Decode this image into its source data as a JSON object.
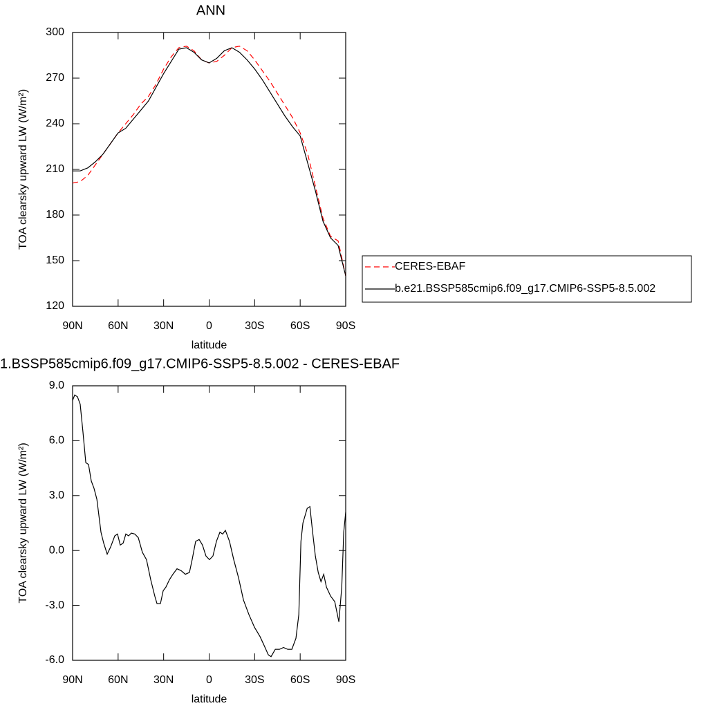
{
  "chart_data": [
    {
      "type": "line",
      "title": "ANN",
      "xlabel": "latitude",
      "ylabel": "TOA clearsky upward LW (W/m²)",
      "x": [
        90,
        85,
        80,
        75,
        70,
        65,
        60,
        55,
        50,
        45,
        40,
        35,
        30,
        25,
        20,
        15,
        10,
        5,
        0,
        -5,
        -10,
        -15,
        -20,
        -25,
        -30,
        -35,
        -40,
        -45,
        -50,
        -55,
        -60,
        -65,
        -70,
        -75,
        -80,
        -85,
        -90
      ],
      "xlim": [
        90,
        -90
      ],
      "xticks": [
        {
          "value": 90,
          "label": "90N"
        },
        {
          "value": 60,
          "label": "60N"
        },
        {
          "value": 30,
          "label": "30N"
        },
        0,
        {
          "value": -30,
          "label": "30S"
        },
        {
          "value": -60,
          "label": "60S"
        },
        {
          "value": -90,
          "label": "90S"
        }
      ],
      "ylim": [
        120,
        300
      ],
      "yticks": [
        120,
        150,
        180,
        210,
        240,
        270,
        300
      ],
      "legend": "right",
      "series": [
        {
          "name": "CERES-EBAF",
          "color": "#ff0000",
          "dash": true,
          "values": [
            201,
            202,
            206,
            213,
            220,
            227,
            234,
            240,
            246,
            253,
            258,
            266,
            276,
            284,
            290,
            291,
            288,
            282,
            280,
            281,
            285,
            290,
            291,
            288,
            282,
            275,
            268,
            260,
            252,
            244,
            234,
            220,
            199,
            178,
            166,
            163,
            140
          ]
        },
        {
          "name": "b.e21.BSSP585cmip6.f09_g17.CMIP6-SSP5-8.5.002",
          "color": "#000000",
          "dash": false,
          "values": [
            209,
            209,
            211,
            215,
            220,
            227,
            234,
            237,
            243,
            249,
            255,
            264,
            273,
            281,
            289,
            290,
            287,
            282,
            280,
            283,
            288,
            290,
            287,
            282,
            276,
            269,
            261,
            253,
            245,
            238,
            232,
            214,
            196,
            176,
            165,
            160,
            140
          ]
        }
      ]
    },
    {
      "type": "line",
      "title": "1.BSSP585cmip6.f09_g17.CMIP6-SSP5-8.5.002 - CERES-EBAF",
      "xlabel": "latitude",
      "ylabel": "TOA clearsky upward LW (W/m²)",
      "x": [
        90,
        88.6,
        86.8,
        85,
        83.2,
        81.3,
        79.5,
        77.7,
        75.9,
        74,
        71.3,
        69.5,
        67.2,
        64.9,
        62.2,
        60.4,
        58.6,
        56.7,
        54.9,
        53.1,
        51.3,
        49,
        46.7,
        44,
        41.3,
        38.5,
        35.8,
        34.4,
        32.1,
        30.3,
        28.5,
        26.2,
        23.9,
        21.2,
        18.5,
        15.7,
        13,
        11.2,
        8.9,
        6.6,
        4.4,
        2.1,
        -0.2,
        -2.5,
        -4.8,
        -7.1,
        -8.9,
        -10.7,
        -13.4,
        -16.2,
        -19.4,
        -22.6,
        -26.2,
        -29.9,
        -33.5,
        -36.3,
        -39,
        -40.8,
        -43.6,
        -46.3,
        -49,
        -51.8,
        -54.5,
        -57.2,
        -59.1,
        -60.5,
        -61.8,
        -64.6,
        -66.4,
        -68.2,
        -70,
        -71.9,
        -73.7,
        -75.5,
        -77.3,
        -80.1,
        -82.8,
        -85.5,
        -87.4,
        -88.7,
        -90
      ],
      "xlim": [
        90,
        -90
      ],
      "xticks": [
        {
          "value": 90,
          "label": "90N"
        },
        {
          "value": 60,
          "label": "60N"
        },
        {
          "value": 30,
          "label": "30N"
        },
        0,
        {
          "value": -30,
          "label": "30S"
        },
        {
          "value": -60,
          "label": "60S"
        },
        {
          "value": -90,
          "label": "90S"
        }
      ],
      "ylim": [
        -6,
        9
      ],
      "yticks": [
        {
          "value": -6,
          "label": "-6.0"
        },
        {
          "value": -3,
          "label": "-3.0"
        },
        {
          "value": 0,
          "label": "0.0"
        },
        {
          "value": 3,
          "label": "3.0"
        },
        {
          "value": 6,
          "label": "6.0"
        },
        {
          "value": 9,
          "label": "9.0"
        }
      ],
      "series": [
        {
          "color": "#000000",
          "dash": false,
          "values": [
            8.2,
            8.5,
            8.4,
            8.0,
            6.5,
            4.8,
            4.7,
            3.8,
            3.4,
            2.8,
            1.0,
            0.4,
            -0.2,
            0.2,
            0.8,
            0.9,
            0.3,
            0.4,
            0.9,
            0.8,
            0.95,
            0.9,
            0.7,
            -0.1,
            -0.5,
            -1.6,
            -2.5,
            -2.9,
            -2.9,
            -2.2,
            -2.0,
            -1.6,
            -1.3,
            -1.0,
            -1.1,
            -1.3,
            -1.2,
            -0.5,
            0.5,
            0.6,
            0.3,
            -0.3,
            -0.5,
            -0.3,
            0.5,
            1.0,
            0.9,
            1.1,
            0.5,
            -0.5,
            -1.5,
            -2.7,
            -3.5,
            -4.2,
            -4.7,
            -5.2,
            -5.7,
            -5.8,
            -5.4,
            -5.4,
            -5.3,
            -5.4,
            -5.4,
            -4.8,
            -3.5,
            0.5,
            1.5,
            2.3,
            2.4,
            1.0,
            -0.3,
            -1.2,
            -1.7,
            -1.3,
            -2.0,
            -2.5,
            -2.8,
            -3.9,
            -2.0,
            1.0,
            2.1
          ]
        }
      ]
    }
  ]
}
